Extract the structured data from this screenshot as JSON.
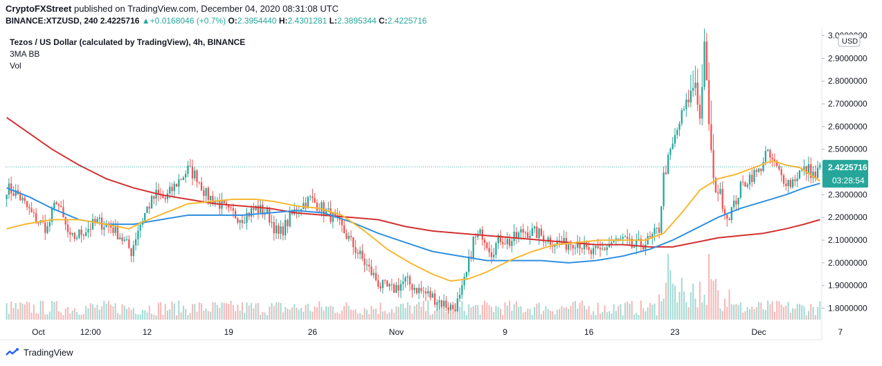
{
  "header": {
    "author": "CryptoFXStreet",
    "published": "published on TradingView.com, December 04, 2020 08:31:08 UTC"
  },
  "ohlc": {
    "symbol": "BINANCE:XTZUSD, 240",
    "last": "2.4225716",
    "change": "+0.0168046 (+0.7%)",
    "o_label": "O:",
    "o": "2.3954440",
    "h_label": "H:",
    "h": "2.4301281",
    "l_label": "L:",
    "l": "2.3895344",
    "c_label": "C:",
    "c": "2.4225716"
  },
  "legend": {
    "title": "Tezos / US Dollar (calculated by TradingView), 4h, BINANCE",
    "indicator": "3MA BB",
    "volume": "Vol"
  },
  "logo": {
    "text": "TradingView"
  },
  "colors": {
    "up": "#26a69a",
    "down": "#ef5350",
    "ma_short": "#f7b731",
    "ma_mid": "#2f8fe0",
    "ma_long": "#d32f2f",
    "last_price_bg": "#26a69a"
  },
  "chart_data": {
    "type": "candlestick",
    "currency_label": "USD",
    "last_price_label": "2.4225716",
    "countdown_label": "03:28:54",
    "ylim": [
      1.75,
      3.02
    ],
    "y_ticks": [
      "3.0000000",
      "2.9000000",
      "2.8000000",
      "2.7000000",
      "2.6000000",
      "2.5000000",
      "2.4000000",
      "2.3000000",
      "2.2000000",
      "2.1000000",
      "2.0000000",
      "1.9000000",
      "1.8000000"
    ],
    "y_tick_values": [
      3.0,
      2.9,
      2.8,
      2.7,
      2.6,
      2.5,
      2.4,
      2.3,
      2.2,
      2.1,
      2.0,
      1.9,
      1.8
    ],
    "x_ticks": [
      "Oct",
      "12:00",
      "12",
      "19",
      "26",
      "Nov",
      "9",
      "16",
      "23",
      "Dec",
      "7"
    ],
    "x_tick_bars": [
      14,
      37,
      62,
      98,
      135,
      172,
      220,
      257,
      295,
      332,
      368
    ],
    "bar_count": 360,
    "series_close": [
      [
        0,
        2.33
      ],
      [
        5,
        2.3
      ],
      [
        12,
        2.2
      ],
      [
        18,
        2.15
      ],
      [
        22,
        2.28
      ],
      [
        24,
        2.22
      ],
      [
        28,
        2.1
      ],
      [
        34,
        2.14
      ],
      [
        40,
        2.18
      ],
      [
        46,
        2.16
      ],
      [
        50,
        2.12
      ],
      [
        55,
        2.05
      ],
      [
        58,
        2.15
      ],
      [
        62,
        2.24
      ],
      [
        66,
        2.3
      ],
      [
        70,
        2.28
      ],
      [
        75,
        2.35
      ],
      [
        80,
        2.41
      ],
      [
        84,
        2.38
      ],
      [
        88,
        2.3
      ],
      [
        94,
        2.26
      ],
      [
        98,
        2.22
      ],
      [
        104,
        2.2
      ],
      [
        110,
        2.24
      ],
      [
        115,
        2.22
      ],
      [
        120,
        2.12
      ],
      [
        124,
        2.18
      ],
      [
        128,
        2.24
      ],
      [
        134,
        2.28
      ],
      [
        138,
        2.25
      ],
      [
        144,
        2.2
      ],
      [
        148,
        2.15
      ],
      [
        152,
        2.09
      ],
      [
        156,
        2.03
      ],
      [
        160,
        1.97
      ],
      [
        165,
        1.9
      ],
      [
        170,
        1.88
      ],
      [
        176,
        1.92
      ],
      [
        182,
        1.88
      ],
      [
        188,
        1.85
      ],
      [
        193,
        1.82
      ],
      [
        197,
        1.8
      ],
      [
        200,
        1.84
      ],
      [
        203,
        1.95
      ],
      [
        206,
        2.1
      ],
      [
        210,
        2.13
      ],
      [
        214,
        2.05
      ],
      [
        218,
        2.11
      ],
      [
        222,
        2.09
      ],
      [
        228,
        2.14
      ],
      [
        234,
        2.13
      ],
      [
        240,
        2.1
      ],
      [
        246,
        2.08
      ],
      [
        252,
        2.1
      ],
      [
        257,
        2.04
      ],
      [
        262,
        2.05
      ],
      [
        267,
        2.09
      ],
      [
        272,
        2.1
      ],
      [
        276,
        2.07
      ],
      [
        280,
        2.08
      ],
      [
        284,
        2.1
      ],
      [
        288,
        2.15
      ],
      [
        290,
        2.38
      ],
      [
        292,
        2.45
      ],
      [
        295,
        2.55
      ],
      [
        298,
        2.65
      ],
      [
        301,
        2.72
      ],
      [
        304,
        2.8
      ],
      [
        306,
        2.63
      ],
      [
        308,
        2.95
      ],
      [
        310,
        2.62
      ],
      [
        312,
        2.35
      ],
      [
        315,
        2.3
      ],
      [
        318,
        2.2
      ],
      [
        321,
        2.25
      ],
      [
        324,
        2.33
      ],
      [
        328,
        2.38
      ],
      [
        332,
        2.4
      ],
      [
        335,
        2.48
      ],
      [
        338,
        2.45
      ],
      [
        342,
        2.38
      ],
      [
        346,
        2.35
      ],
      [
        350,
        2.4
      ],
      [
        354,
        2.41
      ],
      [
        357,
        2.38
      ],
      [
        359,
        2.4225716
      ]
    ],
    "ma_short": [
      [
        0,
        2.15
      ],
      [
        8,
        2.17
      ],
      [
        20,
        2.19
      ],
      [
        32,
        2.19
      ],
      [
        44,
        2.17
      ],
      [
        54,
        2.15
      ],
      [
        60,
        2.18
      ],
      [
        70,
        2.22
      ],
      [
        80,
        2.26
      ],
      [
        90,
        2.27
      ],
      [
        100,
        2.28
      ],
      [
        110,
        2.28
      ],
      [
        118,
        2.27
      ],
      [
        128,
        2.25
      ],
      [
        138,
        2.24
      ],
      [
        148,
        2.21
      ],
      [
        158,
        2.14
      ],
      [
        168,
        2.06
      ],
      [
        178,
        2.0
      ],
      [
        188,
        1.95
      ],
      [
        196,
        1.92
      ],
      [
        204,
        1.93
      ],
      [
        212,
        1.96
      ],
      [
        222,
        2.01
      ],
      [
        232,
        2.05
      ],
      [
        242,
        2.08
      ],
      [
        252,
        2.09
      ],
      [
        262,
        2.1
      ],
      [
        272,
        2.1
      ],
      [
        282,
        2.1
      ],
      [
        290,
        2.13
      ],
      [
        298,
        2.22
      ],
      [
        306,
        2.32
      ],
      [
        314,
        2.37
      ],
      [
        322,
        2.39
      ],
      [
        330,
        2.42
      ],
      [
        338,
        2.45
      ],
      [
        344,
        2.43
      ],
      [
        350,
        2.42
      ],
      [
        356,
        2.38
      ],
      [
        359,
        2.36
      ]
    ],
    "ma_mid": [
      [
        0,
        2.33
      ],
      [
        10,
        2.29
      ],
      [
        20,
        2.24
      ],
      [
        32,
        2.19
      ],
      [
        44,
        2.17
      ],
      [
        56,
        2.17
      ],
      [
        68,
        2.19
      ],
      [
        80,
        2.21
      ],
      [
        92,
        2.21
      ],
      [
        104,
        2.21
      ],
      [
        116,
        2.22
      ],
      [
        128,
        2.23
      ],
      [
        140,
        2.22
      ],
      [
        152,
        2.18
      ],
      [
        164,
        2.13
      ],
      [
        176,
        2.09
      ],
      [
        188,
        2.05
      ],
      [
        200,
        2.03
      ],
      [
        212,
        2.01
      ],
      [
        224,
        2.01
      ],
      [
        236,
        2.01
      ],
      [
        248,
        2.0
      ],
      [
        260,
        2.01
      ],
      [
        272,
        2.03
      ],
      [
        284,
        2.06
      ],
      [
        294,
        2.1
      ],
      [
        304,
        2.15
      ],
      [
        314,
        2.2
      ],
      [
        324,
        2.24
      ],
      [
        334,
        2.27
      ],
      [
        344,
        2.3
      ],
      [
        352,
        2.33
      ],
      [
        359,
        2.35
      ]
    ],
    "ma_long": [
      [
        0,
        2.64
      ],
      [
        10,
        2.57
      ],
      [
        20,
        2.5
      ],
      [
        32,
        2.43
      ],
      [
        44,
        2.37
      ],
      [
        56,
        2.33
      ],
      [
        68,
        2.3
      ],
      [
        80,
        2.28
      ],
      [
        92,
        2.26
      ],
      [
        104,
        2.25
      ],
      [
        116,
        2.24
      ],
      [
        128,
        2.22
      ],
      [
        140,
        2.21
      ],
      [
        152,
        2.2
      ],
      [
        164,
        2.19
      ],
      [
        176,
        2.16
      ],
      [
        188,
        2.14
      ],
      [
        200,
        2.13
      ],
      [
        212,
        2.12
      ],
      [
        224,
        2.11
      ],
      [
        236,
        2.1
      ],
      [
        248,
        2.09
      ],
      [
        260,
        2.08
      ],
      [
        272,
        2.08
      ],
      [
        284,
        2.07
      ],
      [
        294,
        2.07
      ],
      [
        304,
        2.09
      ],
      [
        314,
        2.11
      ],
      [
        324,
        2.12
      ],
      [
        334,
        2.13
      ],
      [
        344,
        2.15
      ],
      [
        352,
        2.17
      ],
      [
        359,
        2.19
      ]
    ]
  }
}
